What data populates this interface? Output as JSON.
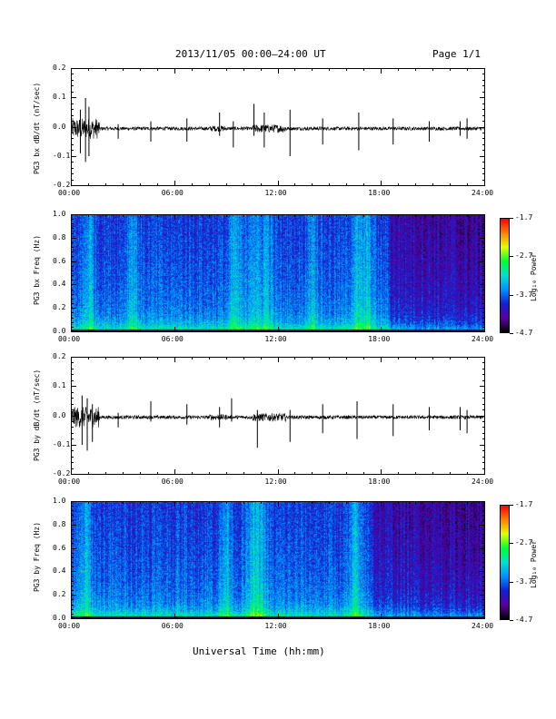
{
  "header": {
    "title": "2013/11/05  00:00–24:00 UT",
    "page": "Page 1/1"
  },
  "xaxis": {
    "ticks": [
      "00:00",
      "06:00",
      "12:00",
      "18:00",
      "24:00"
    ],
    "label": "Universal Time (hh:mm)"
  },
  "colorbar": {
    "ticks": [
      "-1.7",
      "-2.7",
      "-3.7",
      "-4.7"
    ],
    "label": "Log₁₀ Power",
    "colors": [
      "#000000",
      "#5a00a0",
      "#1020d0",
      "#0090ff",
      "#00e0d0",
      "#00ff30",
      "#e0ff00",
      "#ff8000",
      "#ff0000"
    ]
  },
  "chart_data": [
    {
      "type": "line",
      "ylabel": "PG3 bx dB/dt (nT/sec)",
      "ylim": [
        -0.2,
        0.2
      ],
      "yticks": [
        "0.2",
        "0.1",
        "0.0",
        "-0.1",
        "-0.2"
      ],
      "xlim_hours": [
        0,
        24
      ],
      "spikes": [
        {
          "t": 0.5,
          "up": 0.06,
          "down": -0.09
        },
        {
          "t": 0.8,
          "up": 0.1,
          "down": -0.12
        },
        {
          "t": 1.0,
          "up": 0.07,
          "down": -0.1
        },
        {
          "t": 2.7,
          "up": 0.01,
          "down": -0.04
        },
        {
          "t": 4.6,
          "up": 0.02,
          "down": -0.05
        },
        {
          "t": 6.7,
          "up": 0.03,
          "down": -0.05
        },
        {
          "t": 8.6,
          "up": 0.05,
          "down": -0.03
        },
        {
          "t": 9.4,
          "up": 0.02,
          "down": -0.07
        },
        {
          "t": 10.6,
          "up": 0.08,
          "down": -0.03
        },
        {
          "t": 11.2,
          "up": 0.05,
          "down": -0.07
        },
        {
          "t": 12.7,
          "up": 0.06,
          "down": -0.1
        },
        {
          "t": 14.6,
          "up": 0.03,
          "down": -0.06
        },
        {
          "t": 16.7,
          "up": 0.05,
          "down": -0.08
        },
        {
          "t": 18.7,
          "up": 0.03,
          "down": -0.06
        },
        {
          "t": 20.8,
          "up": 0.02,
          "down": -0.05
        },
        {
          "t": 22.6,
          "up": 0.02,
          "down": -0.03
        },
        {
          "t": 23.0,
          "up": 0.03,
          "down": -0.04
        }
      ]
    },
    {
      "type": "heatmap",
      "ylabel": "PG3 bx Freq (Hz)",
      "ylim": [
        0.0,
        1.0
      ],
      "yticks": [
        "1.0",
        "0.8",
        "0.6",
        "0.4",
        "0.2",
        "0.0"
      ],
      "xlim_hours": [
        0,
        24
      ],
      "zlim": [
        -4.7,
        -1.7
      ],
      "bright_bands_hours": [
        1.0,
        3.5,
        9.5,
        10.5,
        11.3,
        14.0,
        16.5,
        17.2
      ],
      "dark_region_hours": [
        18.5,
        24
      ]
    },
    {
      "type": "line",
      "ylabel": "PG3 by dB/dt (nT/sec)",
      "ylim": [
        -0.2,
        0.2
      ],
      "yticks": [
        "0.2",
        "0.1",
        "0.0",
        "-0.1",
        "-0.2"
      ],
      "xlim_hours": [
        0,
        24
      ],
      "spikes": [
        {
          "t": 0.6,
          "up": 0.07,
          "down": -0.1
        },
        {
          "t": 0.9,
          "up": 0.06,
          "down": -0.12
        },
        {
          "t": 1.2,
          "up": 0.04,
          "down": -0.09
        },
        {
          "t": 2.7,
          "up": 0.01,
          "down": -0.04
        },
        {
          "t": 4.6,
          "up": 0.05,
          "down": -0.02
        },
        {
          "t": 6.7,
          "up": 0.04,
          "down": -0.03
        },
        {
          "t": 8.6,
          "up": 0.03,
          "down": -0.04
        },
        {
          "t": 9.3,
          "up": 0.06,
          "down": -0.02
        },
        {
          "t": 10.8,
          "up": 0.02,
          "down": -0.11
        },
        {
          "t": 12.7,
          "up": 0.02,
          "down": -0.09
        },
        {
          "t": 14.6,
          "up": 0.04,
          "down": -0.06
        },
        {
          "t": 16.6,
          "up": 0.05,
          "down": -0.08
        },
        {
          "t": 18.7,
          "up": 0.04,
          "down": -0.07
        },
        {
          "t": 20.8,
          "up": 0.03,
          "down": -0.05
        },
        {
          "t": 22.6,
          "up": 0.03,
          "down": -0.05
        },
        {
          "t": 23.0,
          "up": 0.02,
          "down": -0.06
        }
      ]
    },
    {
      "type": "heatmap",
      "ylabel": "PG3 by Freq (Hz)",
      "ylim": [
        0.0,
        1.0
      ],
      "yticks": [
        "1.0",
        "0.8",
        "0.6",
        "0.4",
        "0.2",
        "0.0"
      ],
      "xlim_hours": [
        0,
        24
      ],
      "zlim": [
        -4.7,
        -1.7
      ],
      "bright_bands_hours": [
        0.8,
        9.0,
        10.5,
        11.0,
        16.5
      ],
      "dark_region_hours": [
        17.5,
        24
      ]
    }
  ]
}
